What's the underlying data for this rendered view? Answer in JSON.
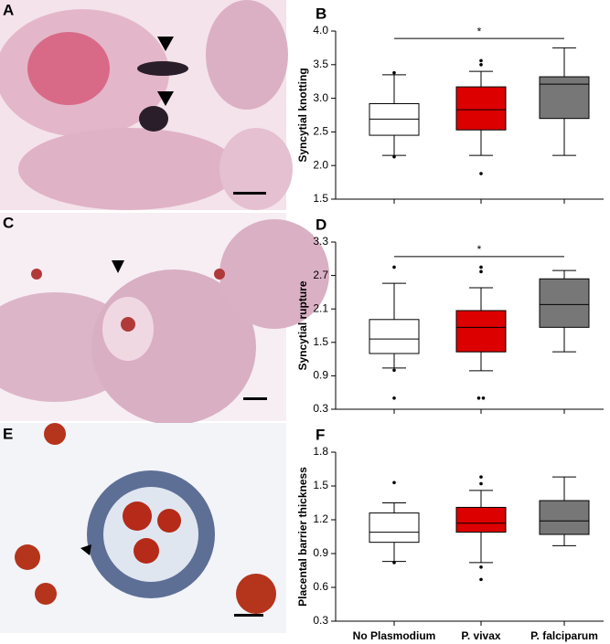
{
  "image_panels": [
    {
      "label": "A"
    },
    {
      "label": "C"
    },
    {
      "label": "E"
    }
  ],
  "chart_data": [
    {
      "type": "box",
      "panel_label": "B",
      "ylabel": "Syncytial knotting",
      "ylim": [
        1.5,
        4.0
      ],
      "yticks": [
        1.5,
        {
          "value": 2.0,
          "label": "2.0"
        },
        2.5,
        {
          "value": 3.0,
          "label": "3.0"
        },
        3.5,
        {
          "value": 4.0,
          "label": "4.0"
        }
      ],
      "boxes": [
        {
          "color": "#ffffff",
          "whisker_low": 2.15,
          "q1": 2.45,
          "median": 2.69,
          "q3": 2.92,
          "whisker_high": 3.35,
          "outliers": [
            3.38,
            2.13
          ]
        },
        {
          "color": "#dd0000",
          "whisker_low": 2.15,
          "q1": 2.53,
          "median": 2.83,
          "q3": 3.17,
          "whisker_high": 3.4,
          "outliers": [
            3.56,
            3.5,
            1.88
          ]
        },
        {
          "color": "#777777",
          "whisker_low": 2.15,
          "q1": 2.7,
          "median": 3.21,
          "q3": 3.32,
          "whisker_high": 3.75,
          "outliers": []
        }
      ],
      "significance": {
        "from": 0,
        "to": 2,
        "y": 3.89,
        "label": "*"
      }
    },
    {
      "type": "box",
      "panel_label": "D",
      "ylabel": "Syncytial rupture",
      "ylim": [
        0.3,
        3.3
      ],
      "yticks": [
        0.3,
        0.9,
        1.5,
        2.1,
        2.7,
        3.3
      ],
      "boxes": [
        {
          "color": "#ffffff",
          "whisker_low": 1.04,
          "q1": 1.3,
          "median": 1.56,
          "q3": 1.91,
          "whisker_high": 2.56,
          "outliers": [
            2.85,
            1.0,
            0.5
          ]
        },
        {
          "color": "#dd0000",
          "whisker_low": 0.99,
          "q1": 1.33,
          "median": 1.77,
          "q3": 2.07,
          "whisker_high": 2.48,
          "outliers": [
            2.85,
            2.77,
            0.5,
            0.5
          ]
        },
        {
          "color": "#777777",
          "whisker_low": 1.33,
          "q1": 1.77,
          "median": 2.18,
          "q3": 2.64,
          "whisker_high": 2.79,
          "outliers": []
        }
      ],
      "significance": {
        "from": 0,
        "to": 2,
        "y": 3.04,
        "label": "*"
      }
    },
    {
      "type": "box",
      "panel_label": "F",
      "ylabel": "Placental barrier thickness",
      "categories": [
        "No Plasmodium",
        "P. vivax",
        "P. falciparum"
      ],
      "ylim": [
        0.3,
        1.8
      ],
      "yticks": [
        0.3,
        0.6,
        0.9,
        1.2,
        1.5,
        1.8
      ],
      "boxes": [
        {
          "color": "#ffffff",
          "whisker_low": 0.83,
          "q1": 1.0,
          "median": 1.09,
          "q3": 1.26,
          "whisker_high": 1.35,
          "outliers": [
            1.53,
            0.82
          ]
        },
        {
          "color": "#dd0000",
          "whisker_low": 0.82,
          "q1": 1.09,
          "median": 1.17,
          "q3": 1.31,
          "whisker_high": 1.46,
          "outliers": [
            1.58,
            1.52,
            0.78,
            0.67
          ]
        },
        {
          "color": "#777777",
          "whisker_low": 0.97,
          "q1": 1.07,
          "median": 1.19,
          "q3": 1.37,
          "whisker_high": 1.58,
          "outliers": []
        }
      ]
    }
  ]
}
